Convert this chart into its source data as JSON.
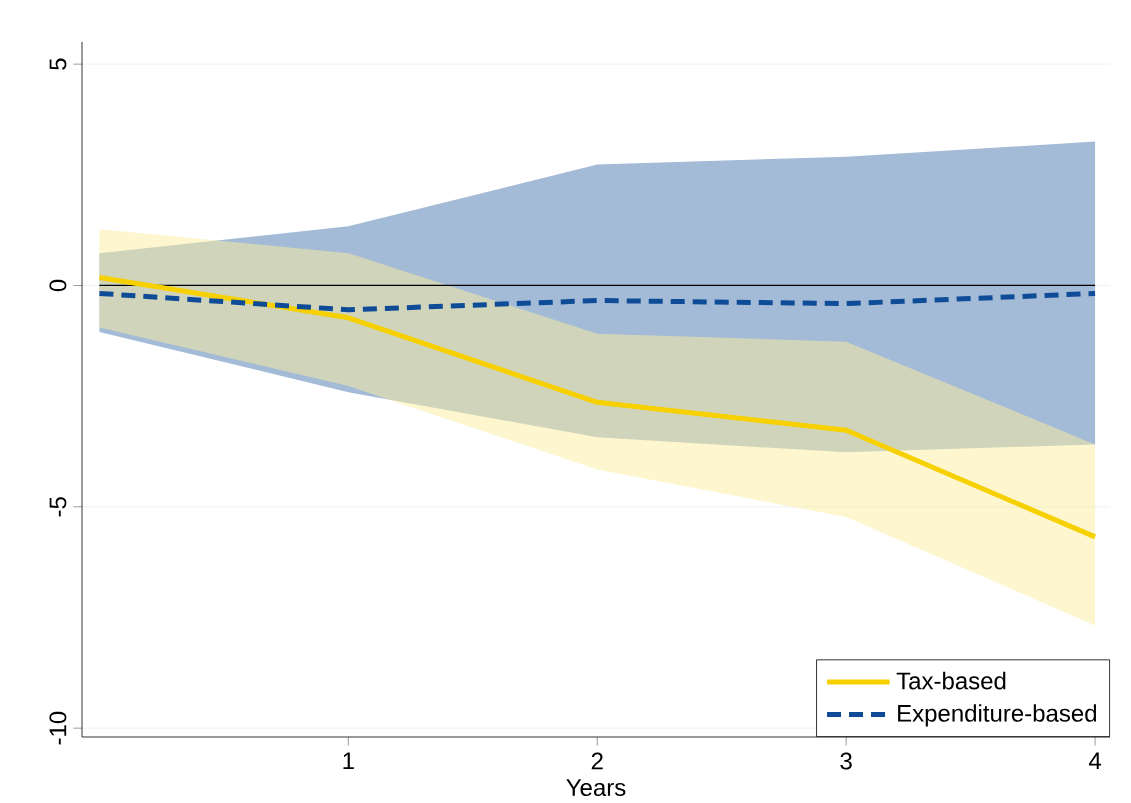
{
  "chart_data": {
    "type": "line",
    "xlabel": "Years",
    "x": [
      0,
      1,
      2,
      3,
      4
    ],
    "series": [
      {
        "name": "Tax-based",
        "color": "#f7d000",
        "line_style": "solid",
        "values": [
          0.18,
          -0.73,
          -2.64,
          -3.27,
          -5.68
        ],
        "lower": [
          -0.95,
          -2.27,
          -4.16,
          -5.23,
          -7.68
        ],
        "upper": [
          1.27,
          0.73,
          -1.09,
          -1.27,
          -3.59
        ]
      },
      {
        "name": "Expenditure-based",
        "color": "#0f4c97",
        "line_style": "dashed",
        "values": [
          -0.18,
          -0.55,
          -0.34,
          -0.41,
          -0.18
        ],
        "lower": [
          -1.05,
          -2.41,
          -3.43,
          -3.77,
          -3.59
        ],
        "upper": [
          0.73,
          1.34,
          2.73,
          2.91,
          3.25
        ]
      }
    ],
    "xlim": [
      -0.07,
      4.06
    ],
    "xticks": [
      1,
      2,
      3,
      4
    ],
    "ylim": [
      -10.2,
      5.5
    ],
    "yticks": [
      -10,
      -5,
      0,
      5
    ],
    "ref_lines": [
      {
        "axis": "y",
        "value": 0,
        "color": "#000000"
      }
    ],
    "grid": "y",
    "legend": "bottom right"
  }
}
